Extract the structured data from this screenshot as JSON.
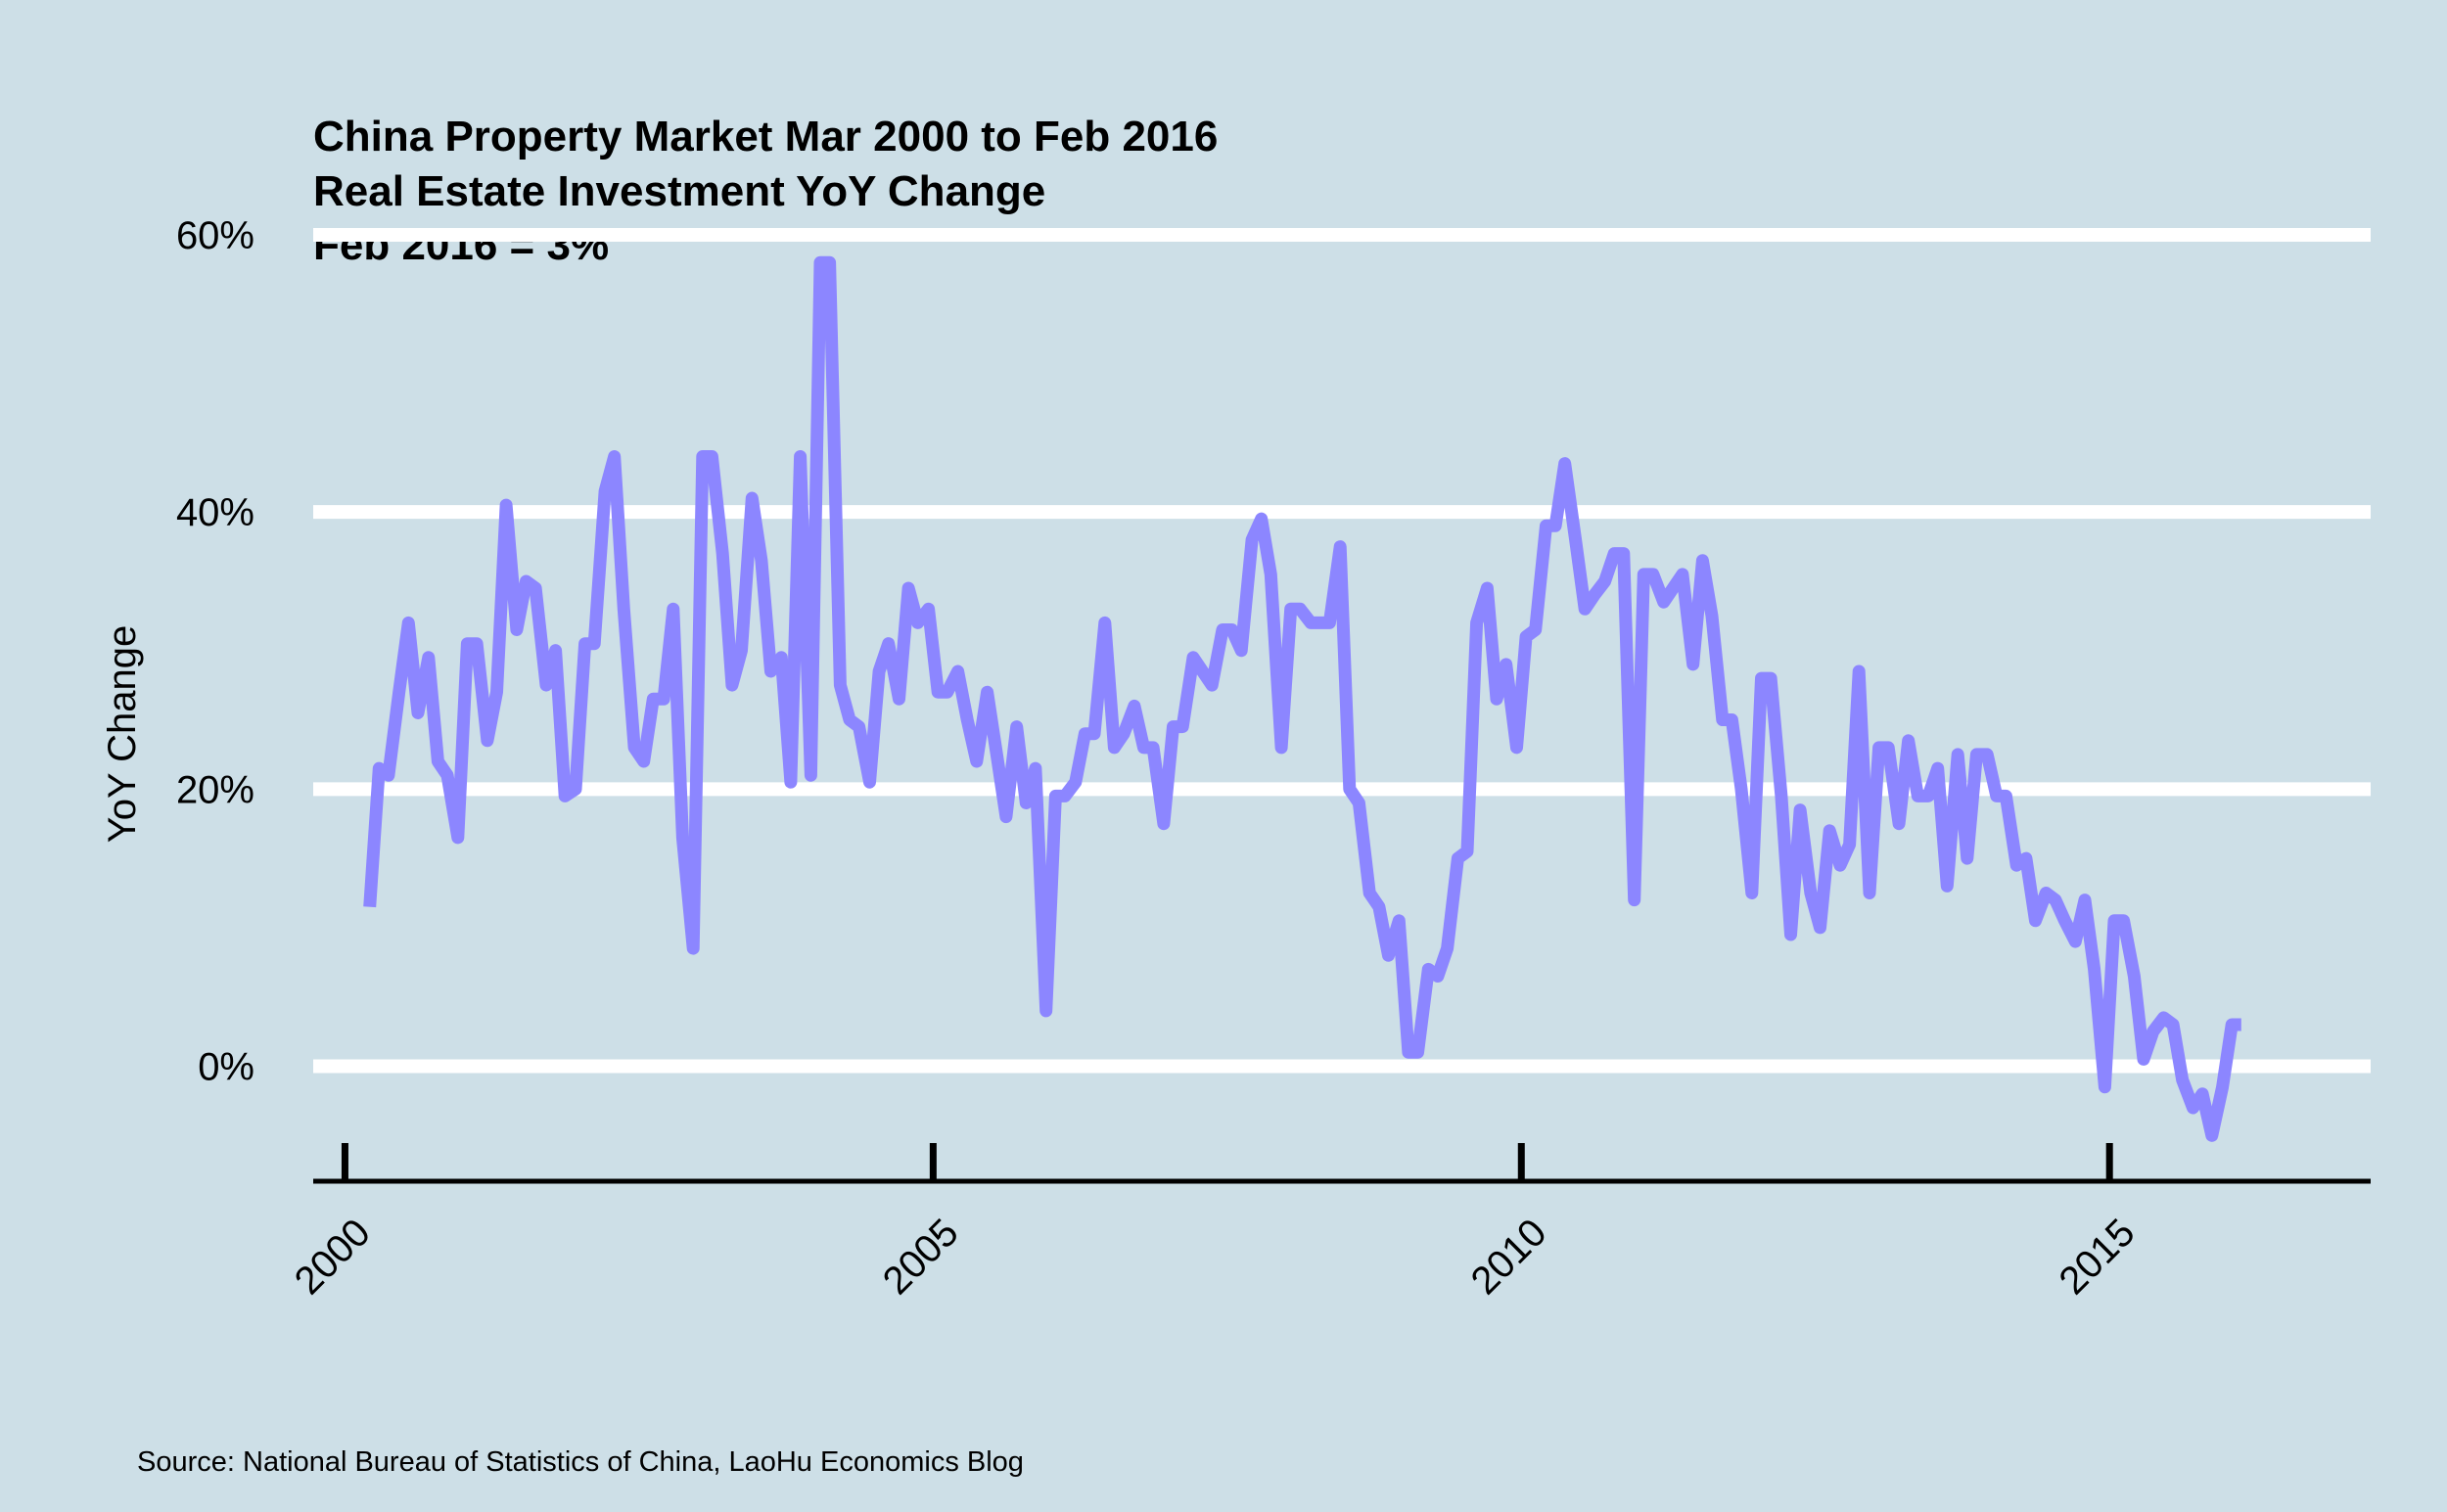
{
  "chart_data": {
    "type": "line",
    "title_lines": [
      "China Property Market Mar 2000 to Feb 2016",
      "Real Estate Investment YoY Change",
      "Feb 2016 = 3%"
    ],
    "ylabel": "YoY Change",
    "xlabel": "",
    "caption": "Source: National Bureau of Statistics of China, LaoHu Economics Blog",
    "x_ticks": [
      {
        "value": 2000,
        "label": "2000"
      },
      {
        "value": 2005,
        "label": "2005"
      },
      {
        "value": 2010,
        "label": "2010"
      },
      {
        "value": 2015,
        "label": "2015"
      }
    ],
    "y_ticks": [
      {
        "value": 0,
        "label": "0%"
      },
      {
        "value": 20,
        "label": "20%"
      },
      {
        "value": 40,
        "label": "40%"
      },
      {
        "value": 60,
        "label": "60%"
      }
    ],
    "xlim": [
      1999.73,
      2017.22
    ],
    "ylim": [
      -8.3,
      60
    ],
    "grid": "horizontal",
    "line_color": "#8c86ff",
    "grid_color": "#ffffff",
    "background_color": "#cddfe7",
    "series": [
      {
        "x": [
          2000.21,
          2000.29,
          2000.37,
          2000.46,
          2000.54,
          2000.62,
          2000.71,
          2000.79,
          2000.87,
          2000.96,
          2001.04,
          2001.12,
          2001.21,
          2001.29,
          2001.37,
          2001.46,
          2001.54,
          2001.62,
          2001.71,
          2001.79,
          2001.87,
          2001.96,
          2002.04,
          2002.12,
          2002.21,
          2002.29,
          2002.37,
          2002.46,
          2002.54,
          2002.62,
          2002.71,
          2002.79,
          2002.87,
          2002.96,
          2003.04,
          2003.12,
          2003.21,
          2003.29,
          2003.37,
          2003.46,
          2003.54,
          2003.62,
          2003.71,
          2003.79,
          2003.87,
          2003.96,
          2004.04,
          2004.12,
          2004.21,
          2004.29,
          2004.37,
          2004.46,
          2004.54,
          2004.62,
          2004.71,
          2004.79,
          2004.87,
          2004.96,
          2005.04,
          2005.12,
          2005.21,
          2005.29,
          2005.37,
          2005.46,
          2005.54,
          2005.62,
          2005.71,
          2005.79,
          2005.87,
          2005.96,
          2006.04,
          2006.12,
          2006.21,
          2006.29,
          2006.37,
          2006.46,
          2006.54,
          2006.62,
          2006.71,
          2006.79,
          2006.87,
          2006.96,
          2007.04,
          2007.12,
          2007.21,
          2007.29,
          2007.37,
          2007.46,
          2007.54,
          2007.62,
          2007.71,
          2007.79,
          2007.87,
          2007.96,
          2008.04,
          2008.12,
          2008.21,
          2008.29,
          2008.37,
          2008.46,
          2008.54,
          2008.62,
          2008.71,
          2008.79,
          2008.87,
          2008.96,
          2009.04,
          2009.12,
          2009.21,
          2009.29,
          2009.37,
          2009.46,
          2009.54,
          2009.62,
          2009.71,
          2009.79,
          2009.87,
          2009.96,
          2010.04,
          2010.12,
          2010.21,
          2010.29,
          2010.37,
          2010.46,
          2010.54,
          2010.62,
          2010.71,
          2010.79,
          2010.87,
          2010.96,
          2011.04,
          2011.12,
          2011.21,
          2011.29,
          2011.37,
          2011.46,
          2011.54,
          2011.62,
          2011.71,
          2011.79,
          2011.87,
          2011.96,
          2012.04,
          2012.12,
          2012.21,
          2012.29,
          2012.37,
          2012.46,
          2012.54,
          2012.62,
          2012.71,
          2012.79,
          2012.87,
          2012.96,
          2013.04,
          2013.12,
          2013.21,
          2013.29,
          2013.37,
          2013.46,
          2013.54,
          2013.62,
          2013.71,
          2013.79,
          2013.87,
          2013.96,
          2014.04,
          2014.12,
          2014.21,
          2014.29,
          2014.37,
          2014.46,
          2014.54,
          2014.62,
          2014.71,
          2014.79,
          2014.87,
          2014.96,
          2015.04,
          2015.12,
          2015.21,
          2015.29,
          2015.37,
          2015.46,
          2015.54,
          2015.62,
          2015.71,
          2015.79,
          2015.87,
          2015.96,
          2016.04,
          2016.12
        ],
        "values": [
          11.5,
          21.5,
          21,
          27,
          32,
          25.5,
          29.5,
          22,
          21,
          16.5,
          30.5,
          30.5,
          23.5,
          27,
          40.5,
          31.5,
          35,
          34.5,
          27.5,
          30,
          19.5,
          20,
          30.5,
          30.5,
          41.5,
          44,
          33,
          23,
          22,
          26.5,
          26.5,
          33,
          16.5,
          8.5,
          44,
          44,
          37,
          27.5,
          30,
          41,
          36.5,
          28.5,
          29.5,
          20.5,
          44,
          21,
          58,
          58,
          27.5,
          25,
          24.5,
          20.5,
          28.5,
          30.5,
          26.5,
          34.5,
          32,
          33,
          27,
          27,
          28.5,
          25,
          22,
          27,
          22.5,
          18,
          24.5,
          19,
          21.5,
          4,
          19.5,
          19.5,
          20.5,
          24,
          24,
          32,
          23,
          24,
          26,
          23,
          23,
          17.5,
          24.5,
          24.5,
          29.5,
          28.5,
          27.5,
          31.5,
          31.5,
          30,
          38,
          39.5,
          35.5,
          23,
          33,
          33,
          32,
          32,
          32,
          37.5,
          20,
          19,
          12.5,
          11.5,
          8,
          10.5,
          1,
          1,
          7,
          6.5,
          8.5,
          15,
          15.5,
          32,
          34.5,
          26.5,
          29,
          23,
          31,
          31.5,
          39,
          39,
          43.5,
          38,
          33,
          34,
          35,
          37,
          37,
          12,
          35.5,
          35.5,
          33.5,
          34.5,
          35.5,
          29,
          36.5,
          32.5,
          25,
          25,
          20,
          12.5,
          28,
          28,
          19.5,
          9.5,
          18.5,
          12.5,
          10,
          17,
          14.5,
          16,
          28.5,
          12.5,
          23,
          23,
          17.5,
          23.5,
          19.5,
          19.5,
          21.5,
          13,
          22.5,
          15,
          22.5,
          22.5,
          19.5,
          19.5,
          14.5,
          15,
          10.5,
          12.5,
          12,
          10.5,
          9,
          12,
          7,
          -1.5,
          10.5,
          10.5,
          6.5,
          0.5,
          2.5,
          3.5,
          3,
          -1,
          -3,
          -2,
          -5,
          -1.5,
          3,
          3
        ]
      }
    ]
  }
}
